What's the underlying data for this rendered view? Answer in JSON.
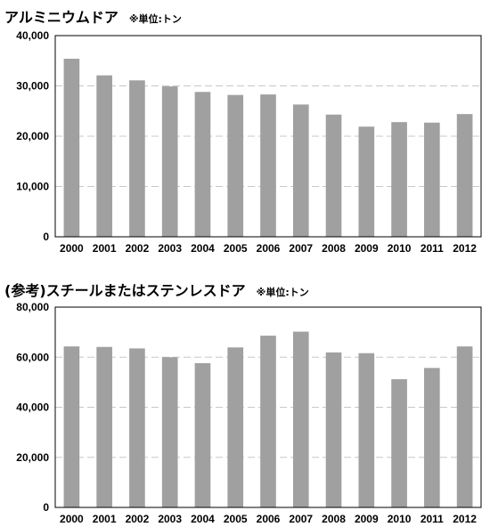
{
  "chart_data": [
    {
      "type": "bar",
      "title": "アルミニウムドア",
      "unit_note": "※単位:トン",
      "categories": [
        "2000",
        "2001",
        "2002",
        "2003",
        "2004",
        "2005",
        "2006",
        "2007",
        "2008",
        "2009",
        "2010",
        "2011",
        "2012"
      ],
      "values": [
        35400,
        32100,
        31100,
        29900,
        28800,
        28200,
        28300,
        26300,
        24300,
        21900,
        22800,
        22700,
        24400
      ],
      "ylim": [
        0,
        40000
      ],
      "yticks": [
        "0",
        "10,000",
        "20,000",
        "30,000",
        "40,000"
      ],
      "grid": true,
      "colors": {
        "bar": "#a0a0a0",
        "grid": "#c8c8c8",
        "frame": "#000000"
      }
    },
    {
      "type": "bar",
      "title": "(参考)スチールまたはステンレスドア",
      "unit_note": "※単位:トン",
      "categories": [
        "2000",
        "2001",
        "2002",
        "2003",
        "2004",
        "2005",
        "2006",
        "2007",
        "2008",
        "2009",
        "2010",
        "2011",
        "2012"
      ],
      "values": [
        64300,
        64100,
        63500,
        60000,
        57600,
        63900,
        68600,
        70200,
        61900,
        61600,
        51200,
        55700,
        64300
      ],
      "ylim": [
        0,
        80000
      ],
      "yticks": [
        "0",
        "20,000",
        "40,000",
        "60,000",
        "80,000"
      ],
      "grid": true,
      "colors": {
        "bar": "#a0a0a0",
        "grid": "#c8c8c8",
        "frame": "#000000"
      }
    }
  ]
}
